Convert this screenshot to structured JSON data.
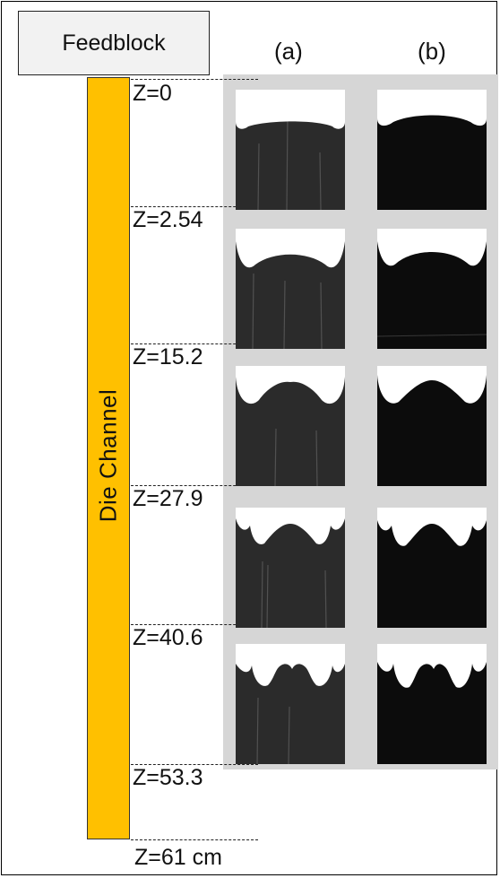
{
  "feedblock_label": "Feedblock",
  "channel_label": "Die Channel",
  "columns": [
    {
      "label": "(a)"
    },
    {
      "label": "(b)"
    }
  ],
  "positions": [
    {
      "label": "Z=0"
    },
    {
      "label": "Z=2.54"
    },
    {
      "label": "Z=15.2"
    },
    {
      "label": "Z=27.9"
    },
    {
      "label": "Z=40.6"
    },
    {
      "label": "Z=53.3"
    },
    {
      "label": "Z=61 cm"
    }
  ],
  "colors": {
    "channel": "#ffc000",
    "feedblock": "#f2f2f2",
    "panel_background": "#d6d6d6",
    "photo_a": "#2b2b2b",
    "photo_b": "#0c0c0c",
    "interface": "#ffffff"
  }
}
